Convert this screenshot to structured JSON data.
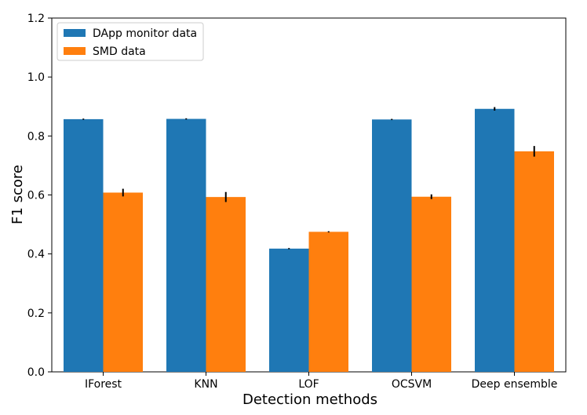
{
  "chart_data": {
    "type": "bar",
    "title": "",
    "xlabel": "Detection methods",
    "ylabel": "F1 score",
    "ylim": [
      0.0,
      1.2
    ],
    "yticks": [
      "0.0",
      "0.2",
      "0.4",
      "0.6",
      "0.8",
      "1.0",
      "1.2"
    ],
    "categories": [
      "IForest",
      "KNN",
      "LOF",
      "OCSVM",
      "Deep ensemble"
    ],
    "series": [
      {
        "name": "DApp monitor data",
        "color": "#1f77b4",
        "values": [
          0.857,
          0.858,
          0.418,
          0.856,
          0.892
        ],
        "errors": [
          0.0,
          0.0,
          0.0,
          0.0,
          0.006
        ]
      },
      {
        "name": "SMD data",
        "color": "#ff7f0e",
        "values": [
          0.608,
          0.593,
          0.475,
          0.594,
          0.748
        ],
        "errors": [
          0.013,
          0.017,
          0.0,
          0.008,
          0.018
        ]
      }
    ],
    "grid": false,
    "legend_position": "top-left"
  }
}
